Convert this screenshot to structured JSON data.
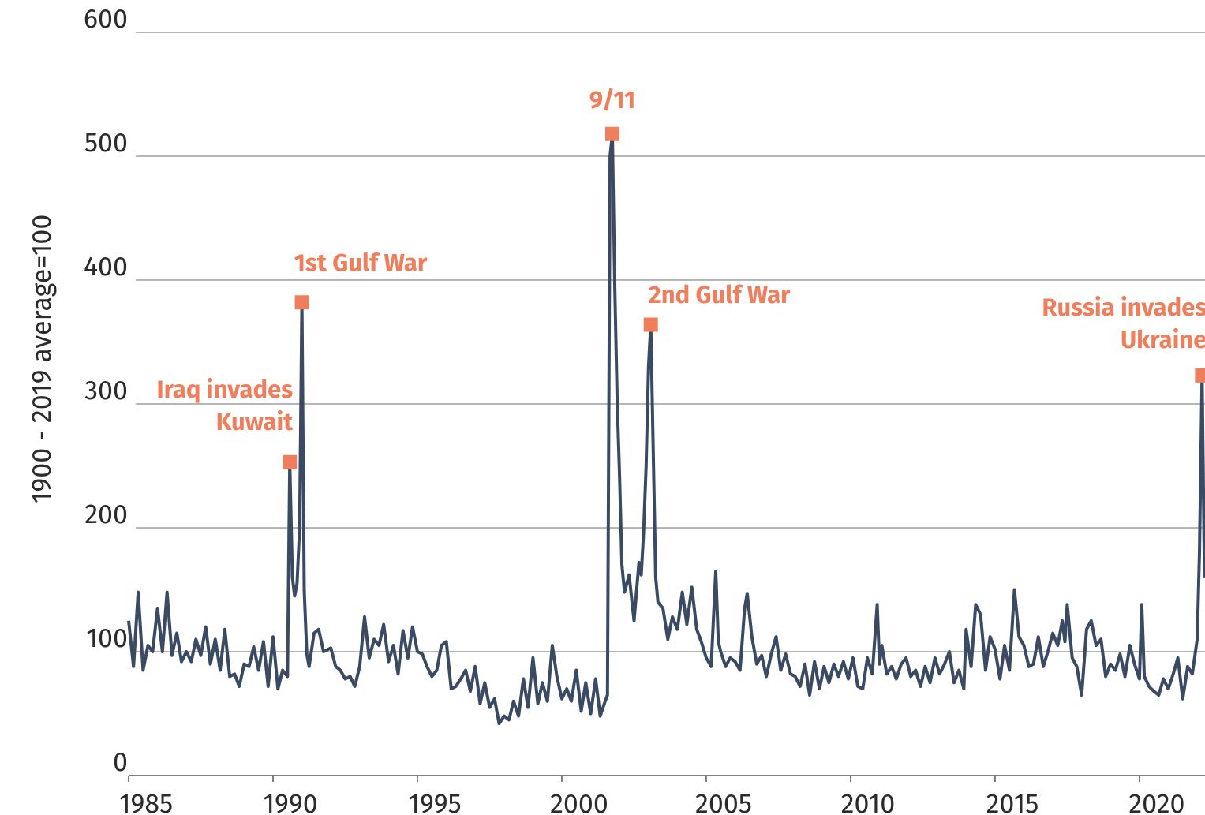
{
  "chart_data": {
    "type": "line",
    "y_label": "1900 - 2019 average=100",
    "xlim": [
      1985,
      2022.27
    ],
    "xticks": [
      1985,
      1990,
      1995,
      2000,
      2005,
      2010,
      2015,
      2020
    ],
    "ylim": [
      0,
      600
    ],
    "yticks": [
      0,
      100,
      200,
      300,
      400,
      500,
      600
    ],
    "grid": true,
    "series": [
      {
        "color": "#3b4a63",
        "x": [
          1985.0,
          1985.17,
          1985.33,
          1985.5,
          1985.67,
          1985.83,
          1986.0,
          1986.17,
          1986.33,
          1986.5,
          1986.67,
          1986.83,
          1987.0,
          1987.17,
          1987.33,
          1987.5,
          1987.67,
          1987.83,
          1988.0,
          1988.17,
          1988.33,
          1988.5,
          1988.67,
          1988.83,
          1989.0,
          1989.17,
          1989.33,
          1989.5,
          1989.67,
          1989.83,
          1990.0,
          1990.17,
          1990.33,
          1990.5,
          1990.58,
          1990.67,
          1990.75,
          1990.83,
          1990.92,
          1991.0,
          1991.08,
          1991.17,
          1991.25,
          1991.42,
          1991.58,
          1991.75,
          1992.0,
          1992.17,
          1992.33,
          1992.5,
          1992.67,
          1992.83,
          1993.0,
          1993.17,
          1993.33,
          1993.5,
          1993.67,
          1993.83,
          1994.0,
          1994.17,
          1994.33,
          1994.5,
          1994.67,
          1994.83,
          1995.0,
          1995.17,
          1995.33,
          1995.5,
          1995.67,
          1995.83,
          1996.0,
          1996.17,
          1996.33,
          1996.5,
          1996.67,
          1996.83,
          1997.0,
          1997.17,
          1997.33,
          1997.5,
          1997.67,
          1997.83,
          1998.0,
          1998.17,
          1998.33,
          1998.5,
          1998.67,
          1998.83,
          1999.0,
          1999.17,
          1999.33,
          1999.5,
          1999.67,
          1999.83,
          2000.0,
          2000.17,
          2000.33,
          2000.5,
          2000.67,
          2000.83,
          2001.0,
          2001.17,
          2001.33,
          2001.5,
          2001.58,
          2001.67,
          2001.75,
          2001.83,
          2001.92,
          2002.0,
          2002.08,
          2002.17,
          2002.33,
          2002.5,
          2002.67,
          2002.75,
          2002.83,
          2002.92,
          2003.0,
          2003.08,
          2003.17,
          2003.25,
          2003.33,
          2003.5,
          2003.67,
          2003.83,
          2004.0,
          2004.17,
          2004.33,
          2004.5,
          2004.67,
          2004.83,
          2005.0,
          2005.17,
          2005.33,
          2005.42,
          2005.5,
          2005.67,
          2005.83,
          2006.0,
          2006.17,
          2006.33,
          2006.42,
          2006.58,
          2006.75,
          2006.92,
          2007.08,
          2007.25,
          2007.42,
          2007.58,
          2007.75,
          2007.92,
          2008.08,
          2008.25,
          2008.42,
          2008.58,
          2008.75,
          2008.92,
          2009.08,
          2009.25,
          2009.42,
          2009.58,
          2009.75,
          2009.92,
          2010.08,
          2010.25,
          2010.42,
          2010.58,
          2010.75,
          2010.92,
          2011.0,
          2011.08,
          2011.25,
          2011.42,
          2011.58,
          2011.75,
          2011.92,
          2012.08,
          2012.25,
          2012.42,
          2012.58,
          2012.75,
          2012.92,
          2013.08,
          2013.25,
          2013.42,
          2013.58,
          2013.75,
          2013.92,
          2014.0,
          2014.17,
          2014.33,
          2014.5,
          2014.67,
          2014.83,
          2015.0,
          2015.17,
          2015.33,
          2015.5,
          2015.67,
          2015.83,
          2016.0,
          2016.17,
          2016.33,
          2016.5,
          2016.67,
          2016.83,
          2017.0,
          2017.17,
          2017.33,
          2017.42,
          2017.5,
          2017.67,
          2017.83,
          2018.0,
          2018.17,
          2018.33,
          2018.5,
          2018.67,
          2018.83,
          2019.0,
          2019.17,
          2019.33,
          2019.5,
          2019.67,
          2019.83,
          2020.0,
          2020.08,
          2020.17,
          2020.33,
          2020.5,
          2020.67,
          2020.83,
          2021.0,
          2021.17,
          2021.33,
          2021.5,
          2021.67,
          2021.83,
          2022.0,
          2022.08,
          2022.17,
          2022.25
        ],
        "values": [
          125,
          88,
          148,
          85,
          105,
          100,
          135,
          100,
          148,
          97,
          115,
          92,
          100,
          92,
          110,
          97,
          120,
          90,
          110,
          85,
          118,
          80,
          82,
          72,
          90,
          88,
          104,
          85,
          108,
          72,
          112,
          70,
          85,
          80,
          253,
          160,
          145,
          155,
          200,
          382,
          150,
          98,
          88,
          115,
          118,
          100,
          103,
          88,
          85,
          78,
          80,
          72,
          88,
          128,
          95,
          110,
          105,
          122,
          92,
          105,
          82,
          117,
          95,
          120,
          100,
          98,
          88,
          80,
          85,
          105,
          108,
          70,
          72,
          78,
          85,
          68,
          88,
          58,
          75,
          55,
          62,
          42,
          48,
          45,
          60,
          48,
          78,
          55,
          95,
          58,
          75,
          60,
          105,
          80,
          62,
          70,
          60,
          85,
          52,
          75,
          50,
          78,
          48,
          60,
          65,
          500,
          518,
          400,
          300,
          240,
          170,
          148,
          162,
          125,
          172,
          162,
          195,
          250,
          330,
          364,
          255,
          160,
          140,
          135,
          110,
          128,
          118,
          148,
          122,
          152,
          118,
          108,
          95,
          88,
          165,
          108,
          100,
          88,
          95,
          92,
          85,
          135,
          147,
          112,
          90,
          97,
          80,
          98,
          112,
          85,
          98,
          82,
          80,
          72,
          90,
          65,
          92,
          70,
          88,
          75,
          90,
          80,
          92,
          78,
          95,
          72,
          70,
          95,
          82,
          138,
          90,
          105,
          82,
          88,
          78,
          90,
          95,
          80,
          85,
          72,
          88,
          75,
          95,
          82,
          90,
          100,
          75,
          85,
          70,
          118,
          88,
          138,
          130,
          85,
          112,
          102,
          78,
          105,
          85,
          150,
          112,
          105,
          88,
          90,
          112,
          88,
          100,
          115,
          105,
          125,
          108,
          138,
          95,
          88,
          65,
          118,
          125,
          105,
          110,
          80,
          90,
          85,
          98,
          80,
          105,
          90,
          78,
          138,
          80,
          72,
          68,
          65,
          78,
          70,
          82,
          95,
          62,
          88,
          82,
          110,
          180,
          323,
          160
        ]
      }
    ],
    "marker_color": "#ef7f5c",
    "annotations": [
      {
        "text": [
          "Iraq invades",
          "Kuwait"
        ],
        "x": 1990.58
      },
      {
        "text": [
          "1st Gulf War"
        ],
        "x": 1991.0
      },
      {
        "text": [
          "9/11"
        ],
        "x": 2001.75
      },
      {
        "text": [
          "2nd Gulf War"
        ],
        "x": 2003.08
      },
      {
        "text": [
          "Russia invades",
          "Ukraine"
        ],
        "x": 2022.17
      }
    ]
  }
}
